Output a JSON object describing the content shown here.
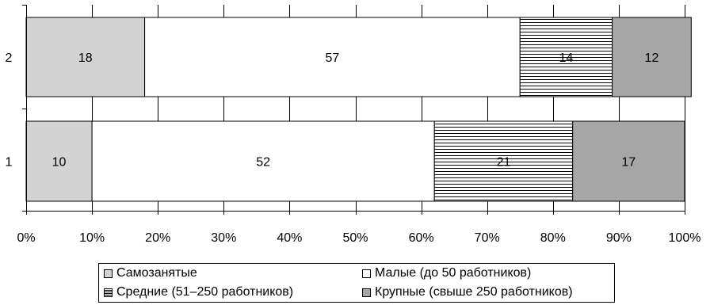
{
  "chart_data": {
    "type": "bar",
    "orientation": "horizontal",
    "stacked": true,
    "categories": [
      "2",
      "1"
    ],
    "series": [
      {
        "name": "Самозанятые",
        "values": [
          18,
          10
        ],
        "color": "#d3d3d3",
        "pattern": "solid"
      },
      {
        "name": "Малые (до 50 работников)",
        "values": [
          57,
          52
        ],
        "color": "#ffffff",
        "pattern": "solid"
      },
      {
        "name": "Средние (51–250 работников)",
        "values": [
          14,
          21
        ],
        "color": "#ffffff",
        "pattern": "horizontal-stripes"
      },
      {
        "name": "Крупные (свыше 250 работников)",
        "values": [
          12,
          17
        ],
        "color": "#a6a6a6",
        "pattern": "solid"
      }
    ],
    "xlim": [
      0,
      100
    ],
    "xticks": [
      "0%",
      "10%",
      "20%",
      "30%",
      "40%",
      "50%",
      "60%",
      "70%",
      "80%",
      "90%",
      "100%"
    ],
    "grid": true,
    "legend_position": "bottom"
  }
}
